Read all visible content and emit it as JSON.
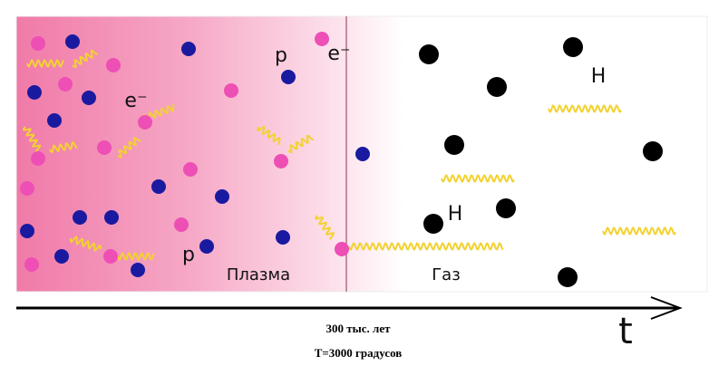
{
  "regions": {
    "plasma": "Плазма",
    "gas": "Газ"
  },
  "particle_labels": [
    "e⁻",
    "p",
    "e⁻",
    "H",
    "H",
    "p"
  ],
  "axis": {
    "label": "t",
    "time": "300 тыс. лет",
    "temperature": "T=3000 градусов"
  }
}
